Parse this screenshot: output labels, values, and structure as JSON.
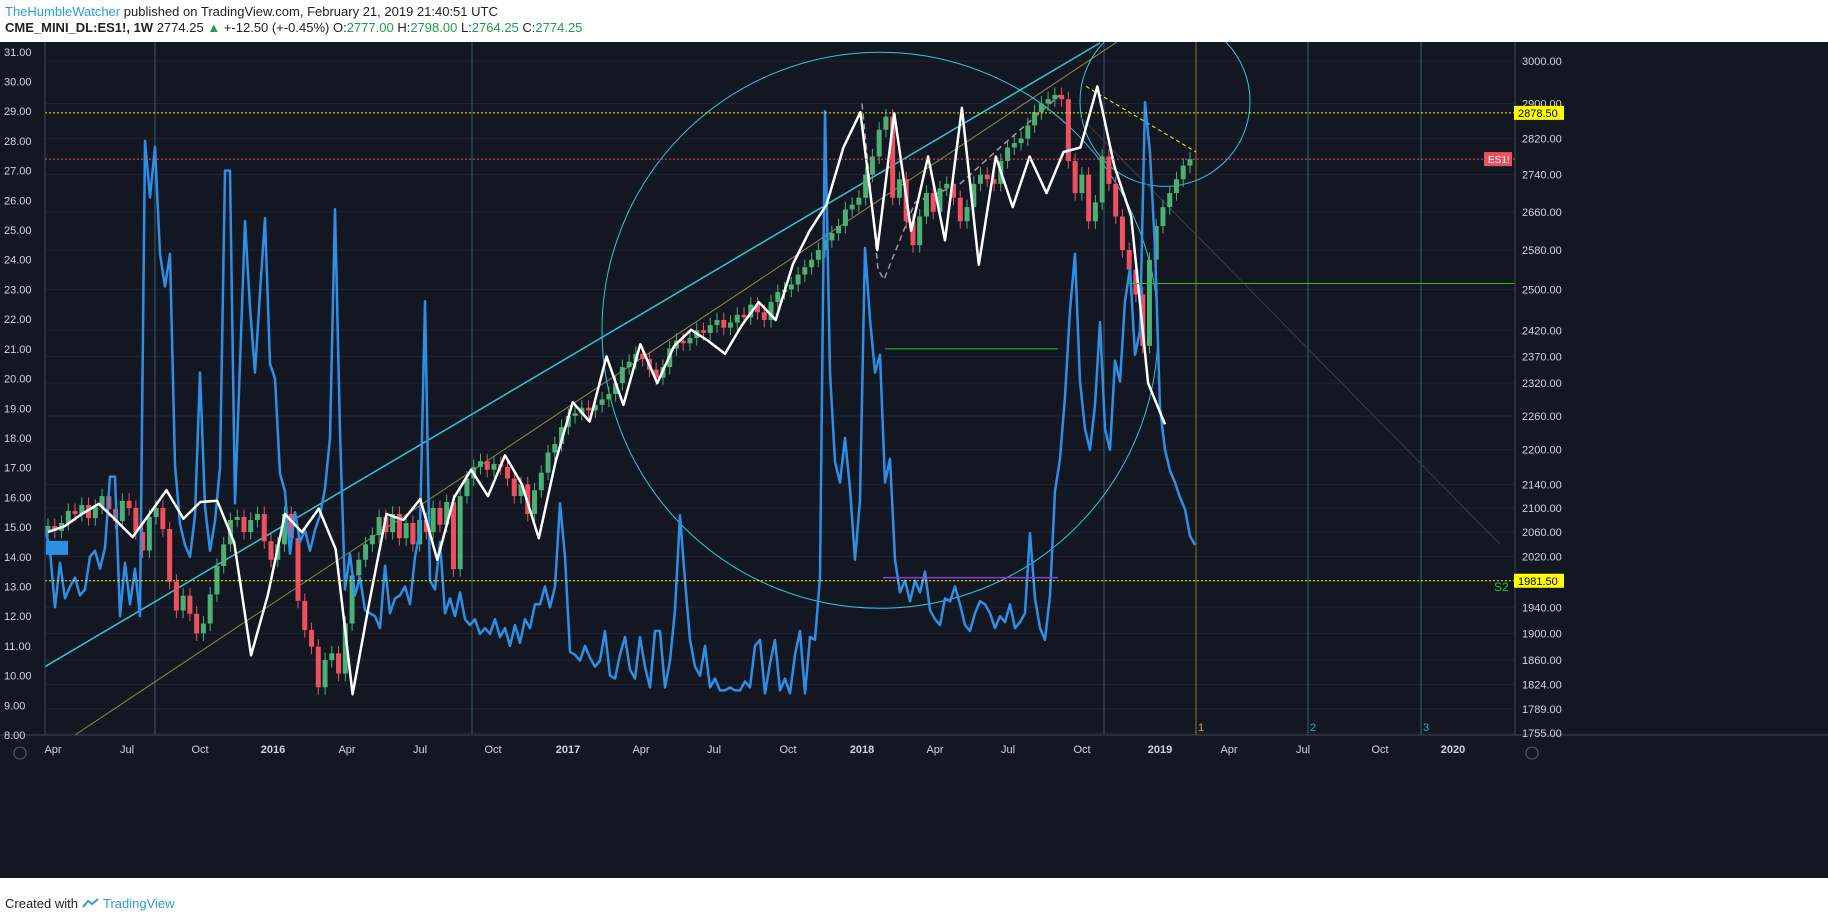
{
  "header": {
    "author": "TheHumbleWatcher",
    "published": "published on TradingView.com, February 21, 2019 21:40:51 UTC"
  },
  "symbol": {
    "name": "CME_MINI_DL:ES1!, 1W",
    "last": "2774.25",
    "arrow": "▲",
    "change": "+-12.50 (+-0.45%)",
    "o_label": "O:",
    "o": "2777.00",
    "h_label": "H:",
    "h": "2798.00",
    "l_label": "L:",
    "l": "2764.25",
    "c_label": "C:",
    "c": "2774.25"
  },
  "footer": {
    "created": "Created with",
    "brand": "TradingView"
  },
  "colors": {
    "background": "#131722",
    "grid": "#1e2433",
    "up": "#4caf73",
    "down": "#ef5060",
    "blue_line": "#2d8fe6",
    "white_line": "#ffffff",
    "cyan": "#31c6d6",
    "yellow": "#f5f51c",
    "green": "#26c026",
    "purple": "#8a3ed6",
    "red": "#ef5060"
  },
  "chart_data": {
    "type": "line",
    "left_axis": {
      "ticks": [
        "31.00",
        "30.00",
        "29.00",
        "28.00",
        "27.00",
        "26.00",
        "25.00",
        "24.00",
        "23.00",
        "22.00",
        "21.00",
        "20.00",
        "19.00",
        "18.00",
        "17.00",
        "16.00",
        "15.00",
        "14.00",
        "13.00",
        "12.00",
        "11.00",
        "10.00",
        "9.00",
        "8.00"
      ],
      "range": [
        8,
        31.33
      ]
    },
    "right_axis": {
      "ticks": [
        "3000.00",
        "2900.00",
        "2820.00",
        "2740.00",
        "2660.00",
        "2580.00",
        "2500.00",
        "2420.00",
        "2370.00",
        "2320.00",
        "2260.00",
        "2200.00",
        "2140.00",
        "2100.00",
        "2060.00",
        "2020.00",
        "1981.50",
        "1940.00",
        "1900.00",
        "1860.00",
        "1824.00",
        "1789.00",
        "1755.00"
      ],
      "log_scale": true
    },
    "x_axis": {
      "labels": [
        "Apr",
        "Jul",
        "Oct",
        "2016",
        "Apr",
        "Jul",
        "Oct",
        "2017",
        "Apr",
        "Jul",
        "Oct",
        "2018",
        "Apr",
        "Jul",
        "Oct",
        "2019",
        "Apr",
        "Jul",
        "Oct",
        "2020"
      ],
      "bold": [
        "2016",
        "2017",
        "2018",
        "2019",
        "2020"
      ]
    },
    "price_labels": [
      {
        "text": "2878.50",
        "value": 2878.5,
        "style": "yellow"
      },
      {
        "text": "ES1!",
        "value": 2774.25,
        "style": "red"
      },
      {
        "text": "1981.50",
        "value": 1981.5,
        "style": "yellow"
      }
    ],
    "annotations": [
      "S2",
      "1",
      "2",
      "3"
    ],
    "series": [
      {
        "kind": "volatility_line",
        "axis": "left",
        "values": [
          15.0,
          14.2,
          12.3,
          13.8,
          12.6,
          13.0,
          13.3,
          12.7,
          12.9,
          14.0,
          14.2,
          13.6,
          14.3,
          16.7,
          16.7,
          12.0,
          13.8,
          12.4,
          13.6,
          12.0,
          28.0,
          26.1,
          27.8,
          24.2,
          23.1,
          24.2,
          17.1,
          15.1,
          14.4,
          14.0,
          15.4,
          20.2,
          15.7,
          14.2,
          15.2,
          17.0,
          27.0,
          27.0,
          15.8,
          20.5,
          25.3,
          22.4,
          20.2,
          22.9,
          25.4,
          20.5,
          20.0,
          16.8,
          16.2,
          14.1,
          15.5,
          14.5,
          14.9,
          14.2,
          14.9,
          15.4,
          16.3,
          18.0,
          25.7,
          18.2,
          12.9,
          14.1,
          12.7,
          13.3,
          12.2,
          12.1,
          12.0,
          11.6,
          13.7,
          12.1,
          12.6,
          12.7,
          13.0,
          12.4,
          14.0,
          14.9,
          22.6,
          13.2,
          12.9,
          14.5,
          12.1,
          12.6,
          12.0,
          12.8,
          11.9,
          11.7,
          11.9,
          11.4,
          11.6,
          11.4,
          11.9,
          11.3,
          11.6,
          11.0,
          11.7,
          11.1,
          11.9,
          11.6,
          12.4,
          12.4,
          13.0,
          12.3,
          13.0,
          15.8,
          14.0,
          10.8,
          10.7,
          10.5,
          11.0,
          10.6,
          10.3,
          10.5,
          11.5,
          10.0,
          9.9,
          10.7,
          11.3,
          10.2,
          9.9,
          11.3,
          10.3,
          9.6,
          11.5,
          11.5,
          9.6,
          10.5,
          12.2,
          15.4,
          13.2,
          11.2,
          10.3,
          10.0,
          11.0,
          9.6,
          9.9,
          9.5,
          9.5,
          9.6,
          9.5,
          9.5,
          9.8,
          9.6,
          11.0,
          11.2,
          9.4,
          10.4,
          11.2,
          9.5,
          9.9,
          9.4,
          10.7,
          11.5,
          9.4,
          11.3,
          11.2,
          13.3,
          29.0,
          20.2,
          17.2,
          16.5,
          18.0,
          16.3,
          13.9,
          15.9,
          24.4,
          22.0,
          20.2,
          20.8,
          16.5,
          17.3,
          13.9,
          12.8,
          13.2,
          12.5,
          13.2,
          12.8,
          13.5,
          12.2,
          11.9,
          11.7,
          12.6,
          12.5,
          13.0,
          12.4,
          11.7,
          11.5,
          12.1,
          12.5,
          12.4,
          12.1,
          11.6,
          12.0,
          11.8,
          12.4,
          11.6,
          11.8,
          12.1,
          14.8,
          12.6,
          11.6,
          11.2,
          12.7,
          16.2,
          17.3,
          19.4,
          22.3,
          24.2,
          19.9,
          18.3,
          17.6,
          19.1,
          21.9,
          18.3,
          17.6,
          20.6,
          19.9,
          22.6,
          23.7,
          20.8,
          21.6,
          29.3,
          27.6,
          24.4,
          19.0,
          17.6,
          16.9,
          16.5,
          16.0,
          15.6,
          14.7,
          14.4
        ]
      },
      {
        "kind": "zigzag_pattern",
        "axis": "right",
        "values": [
          2060,
          2070,
          2090,
          2107,
          2080,
          2052,
          2090,
          2130,
          2082,
          2110,
          2112,
          2043,
          1867,
          1960,
          2090,
          2060,
          2099,
          2032,
          1810,
          1950,
          2090,
          2080,
          2115,
          2015,
          2118,
          2165,
          2120,
          2190,
          2140,
          2050,
          2180,
          2285,
          2250,
          2370,
          2280,
          2393,
          2320,
          2390,
          2421,
          2400,
          2375,
          2430,
          2475,
          2440,
          2550,
          2620,
          2675,
          2800,
          2880,
          2580,
          2878,
          2620,
          2780,
          2600,
          2890,
          2550,
          2780,
          2670,
          2780,
          2700,
          2790,
          2800,
          2940,
          2760,
          2650,
          2320,
          2245
        ]
      }
    ],
    "candles": {
      "axis": "right",
      "note": "weekly OHLC candles of ES1!, roughly 1985 (2015-03) to 2774 (2019-02)",
      "closes": [
        2070,
        2062,
        2075,
        2095,
        2090,
        2105,
        2083,
        2102,
        2120,
        2098,
        2078,
        2112,
        2100,
        2060,
        2030,
        2085,
        2100,
        2065,
        1980,
        1935,
        1958,
        1930,
        1900,
        1915,
        1960,
        2005,
        2040,
        2080,
        2085,
        2060,
        2080,
        2090,
        2045,
        2015,
        2040,
        2090,
        2050,
        1950,
        1905,
        1880,
        1820,
        1860,
        1870,
        1840,
        1915,
        1990,
        2015,
        2040,
        2055,
        2085,
        2060,
        2090,
        2050,
        2075,
        2040,
        2080,
        2060,
        2100,
        2072,
        2110,
        2000,
        2120,
        2150,
        2170,
        2180,
        2165,
        2175,
        2170,
        2150,
        2120,
        2140,
        2090,
        2130,
        2160,
        2195,
        2210,
        2240,
        2260,
        2265,
        2275,
        2270,
        2280,
        2290,
        2300,
        2320,
        2350,
        2360,
        2375,
        2365,
        2345,
        2330,
        2350,
        2385,
        2400,
        2395,
        2405,
        2420,
        2415,
        2430,
        2440,
        2425,
        2435,
        2450,
        2445,
        2470,
        2455,
        2440,
        2475,
        2495,
        2500,
        2510,
        2530,
        2545,
        2560,
        2580,
        2600,
        2615,
        2630,
        2665,
        2675,
        2690,
        2740,
        2780,
        2840,
        2870,
        2690,
        2730,
        2640,
        2590,
        2650,
        2700,
        2660,
        2710,
        2720,
        2690,
        2640,
        2670,
        2720,
        2740,
        2730,
        2720,
        2770,
        2800,
        2810,
        2820,
        2850,
        2880,
        2900,
        2910,
        2920,
        2910,
        2770,
        2700,
        2740,
        2640,
        2680,
        2780,
        2720,
        2650,
        2580,
        2540,
        2490,
        2390,
        2560,
        2630,
        2670,
        2700,
        2730,
        2760,
        2774
      ]
    }
  }
}
